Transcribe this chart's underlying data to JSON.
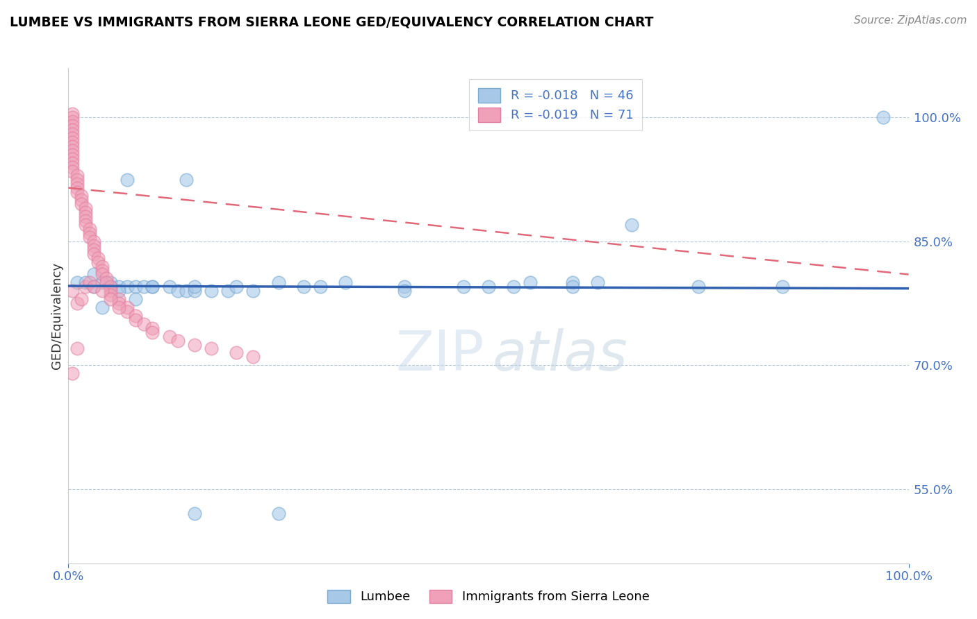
{
  "title": "LUMBEE VS IMMIGRANTS FROM SIERRA LEONE GED/EQUIVALENCY CORRELATION CHART",
  "source": "Source: ZipAtlas.com",
  "ylabel": "GED/Equivalency",
  "yticks": [
    0.55,
    0.7,
    0.85,
    1.0
  ],
  "ytick_labels": [
    "55.0%",
    "70.0%",
    "85.0%",
    "100.0%"
  ],
  "xlim": [
    0.0,
    1.0
  ],
  "ylim": [
    0.46,
    1.06
  ],
  "lumbee_R": -0.018,
  "lumbee_N": 46,
  "sierra_R": -0.019,
  "sierra_N": 71,
  "lumbee_color": "#a8c8e8",
  "sierra_color": "#f0a0b8",
  "lumbee_edge_color": "#7aaad0",
  "sierra_edge_color": "#e080a0",
  "lumbee_line_color": "#3060b0",
  "sierra_line_color": "#e06878",
  "legend_label_lumbee": "Lumbee",
  "legend_label_sierra": "Immigrants from Sierra Leone",
  "lumbee_x": [
    0.07,
    0.14,
    0.01,
    0.02,
    0.03,
    0.03,
    0.04,
    0.05,
    0.05,
    0.06,
    0.07,
    0.08,
    0.09,
    0.1,
    0.12,
    0.13,
    0.14,
    0.15,
    0.17,
    0.19,
    0.22,
    0.25,
    0.28,
    0.33,
    0.4,
    0.47,
    0.5,
    0.53,
    0.6,
    0.63,
    0.67,
    0.75,
    0.04,
    0.06,
    0.08,
    0.1,
    0.15,
    0.2,
    0.3,
    0.4,
    0.55,
    0.6,
    0.85,
    0.15,
    0.25,
    0.97
  ],
  "lumbee_y": [
    0.925,
    0.925,
    0.8,
    0.8,
    0.81,
    0.795,
    0.8,
    0.8,
    0.795,
    0.795,
    0.795,
    0.795,
    0.795,
    0.795,
    0.795,
    0.79,
    0.79,
    0.79,
    0.79,
    0.79,
    0.79,
    0.8,
    0.795,
    0.8,
    0.795,
    0.795,
    0.795,
    0.795,
    0.8,
    0.8,
    0.87,
    0.795,
    0.77,
    0.79,
    0.78,
    0.795,
    0.795,
    0.795,
    0.795,
    0.79,
    0.8,
    0.795,
    0.795,
    0.52,
    0.52,
    1.0
  ],
  "sierra_x": [
    0.005,
    0.005,
    0.005,
    0.005,
    0.005,
    0.005,
    0.005,
    0.005,
    0.005,
    0.005,
    0.005,
    0.005,
    0.005,
    0.005,
    0.005,
    0.01,
    0.01,
    0.01,
    0.01,
    0.01,
    0.015,
    0.015,
    0.015,
    0.02,
    0.02,
    0.02,
    0.02,
    0.02,
    0.025,
    0.025,
    0.025,
    0.03,
    0.03,
    0.03,
    0.03,
    0.035,
    0.035,
    0.04,
    0.04,
    0.04,
    0.045,
    0.045,
    0.05,
    0.05,
    0.05,
    0.06,
    0.06,
    0.07,
    0.07,
    0.08,
    0.08,
    0.09,
    0.1,
    0.1,
    0.12,
    0.13,
    0.15,
    0.17,
    0.2,
    0.22,
    0.005,
    0.01,
    0.015,
    0.02,
    0.025,
    0.03,
    0.04,
    0.05,
    0.06,
    0.005,
    0.01
  ],
  "sierra_y": [
    1.005,
    1.0,
    0.995,
    0.99,
    0.985,
    0.98,
    0.975,
    0.97,
    0.965,
    0.96,
    0.955,
    0.95,
    0.945,
    0.94,
    0.935,
    0.93,
    0.925,
    0.92,
    0.915,
    0.91,
    0.905,
    0.9,
    0.895,
    0.89,
    0.885,
    0.88,
    0.875,
    0.87,
    0.865,
    0.86,
    0.855,
    0.85,
    0.845,
    0.84,
    0.835,
    0.83,
    0.825,
    0.82,
    0.815,
    0.81,
    0.805,
    0.8,
    0.795,
    0.79,
    0.785,
    0.78,
    0.775,
    0.77,
    0.765,
    0.76,
    0.755,
    0.75,
    0.745,
    0.74,
    0.735,
    0.73,
    0.725,
    0.72,
    0.715,
    0.71,
    0.79,
    0.775,
    0.78,
    0.795,
    0.8,
    0.795,
    0.79,
    0.78,
    0.77,
    0.69,
    0.72
  ],
  "lumbee_trend_y0": 0.796,
  "lumbee_trend_y1": 0.793,
  "sierra_trend_y0": 0.915,
  "sierra_trend_y1": 0.81
}
